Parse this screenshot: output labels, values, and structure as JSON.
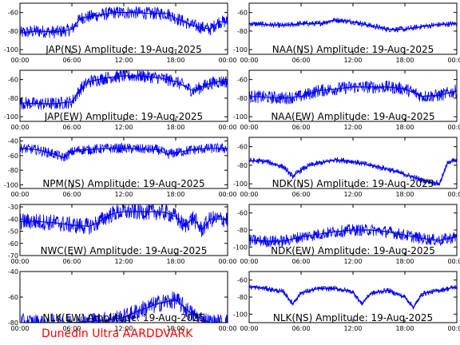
{
  "footer": "Dunedin Ultra AARDDVARK",
  "colors": {
    "trace": "#0000ff",
    "footer": "#ff0000",
    "axis": "#000000"
  },
  "chart_data": [
    {
      "type": "line",
      "title": "JAP(NS) Amplitude: 19-Aug-2025",
      "ylim": [
        -105,
        -50
      ],
      "yticks": [
        -100,
        -80,
        -60
      ],
      "xlim": [
        0,
        24
      ],
      "xticks": [
        "00:00",
        "06:00",
        "12:00",
        "18:00",
        "00:00"
      ],
      "x": [
        0,
        2,
        4,
        5,
        6,
        7,
        9,
        11,
        13,
        15,
        17,
        18,
        19,
        20,
        21,
        22,
        23,
        24
      ],
      "y": [
        -82,
        -80,
        -81,
        -80,
        -78,
        -66,
        -63,
        -60,
        -60,
        -61,
        -61,
        -66,
        -70,
        -74,
        -76,
        -78,
        -70,
        -70
      ]
    },
    {
      "type": "line",
      "title": "NAA(NS) Amplitude: 19-Aug-2025",
      "ylim": [
        -105,
        -50
      ],
      "yticks": [
        -100,
        -80,
        -60
      ],
      "xlim": [
        0,
        24
      ],
      "xticks": [
        "00:00",
        "06:00",
        "12:00",
        "18:00",
        "00:00"
      ],
      "x": [
        0,
        2,
        4,
        6,
        8,
        10,
        12,
        14,
        16,
        18,
        20,
        22,
        24
      ],
      "y": [
        -72,
        -73,
        -74,
        -72,
        -72,
        -68,
        -70,
        -74,
        -78,
        -78,
        -75,
        -73,
        -72
      ]
    },
    {
      "type": "line",
      "title": "JAP(EW) Amplitude: 19-Aug-2025",
      "ylim": [
        -105,
        -50
      ],
      "yticks": [
        -100,
        -80,
        -60
      ],
      "xlim": [
        0,
        24
      ],
      "xticks": [
        "00:00",
        "06:00",
        "12:00",
        "18:00",
        "00:00"
      ],
      "x": [
        0,
        2,
        4,
        6,
        7,
        8,
        10,
        12,
        14,
        16,
        18,
        20,
        22,
        23,
        24
      ],
      "y": [
        -85,
        -86,
        -86,
        -84,
        -70,
        -62,
        -58,
        -56,
        -56,
        -58,
        -62,
        -72,
        -64,
        -62,
        -62
      ]
    },
    {
      "type": "line",
      "title": "NAA(EW) Amplitude: 19-Aug-2025",
      "ylim": [
        -105,
        -50
      ],
      "yticks": [
        -100,
        -80,
        -60
      ],
      "xlim": [
        0,
        24
      ],
      "xticks": [
        "00:00",
        "06:00",
        "12:00",
        "18:00",
        "00:00"
      ],
      "x": [
        0,
        2,
        4,
        6,
        8,
        10,
        12,
        14,
        16,
        18,
        20,
        22,
        24
      ],
      "y": [
        -78,
        -79,
        -80,
        -78,
        -72,
        -70,
        -68,
        -68,
        -68,
        -70,
        -78,
        -77,
        -72
      ]
    },
    {
      "type": "line",
      "title": "NPM(NS) Amplitude: 19-Aug-2025",
      "ylim": [
        -105,
        -35
      ],
      "yticks": [
        -100,
        -80,
        -60,
        -40
      ],
      "xlim": [
        0,
        24
      ],
      "xticks": [
        "00:00",
        "06:00",
        "12:00",
        "18:00",
        "00:00"
      ],
      "x": [
        0,
        2,
        4,
        5,
        6,
        7,
        8,
        10,
        12,
        14,
        16,
        17,
        18,
        20,
        22,
        24
      ],
      "y": [
        -50,
        -52,
        -58,
        -63,
        -55,
        -52,
        -52,
        -50,
        -50,
        -51,
        -52,
        -58,
        -56,
        -52,
        -50,
        -50
      ]
    },
    {
      "type": "line",
      "title": "NDK(NS) Amplitude: 19-Aug-2025",
      "ylim": [
        -105,
        -50
      ],
      "yticks": [
        -100,
        -80,
        -60
      ],
      "xlim": [
        0,
        24
      ],
      "xticks": [
        "00:00",
        "06:00",
        "12:00",
        "18:00",
        "00:00"
      ],
      "x": [
        0,
        2,
        4,
        5,
        6,
        7,
        8,
        10,
        12,
        14,
        16,
        18,
        20,
        22,
        23,
        24
      ],
      "y": [
        -75,
        -76,
        -82,
        -92,
        -85,
        -80,
        -78,
        -74,
        -76,
        -80,
        -84,
        -90,
        -96,
        -100,
        -76,
        -75
      ]
    },
    {
      "type": "line",
      "title": "NWC(EW) Amplitude: 19-Aug-2025",
      "ylim": [
        -70,
        -28
      ],
      "yticks": [
        -70,
        -60,
        -50,
        -40,
        -30
      ],
      "xlim": [
        0,
        24
      ],
      "xticks": [
        "00:00",
        "06:00",
        "12:00",
        "18:00",
        "00:00"
      ],
      "x": [
        0,
        2,
        4,
        6,
        8,
        9,
        10,
        11,
        12,
        14,
        16,
        17,
        18,
        19,
        20,
        21,
        22,
        24
      ],
      "y": [
        -42,
        -42,
        -43,
        -45,
        -46,
        -43,
        -38,
        -35,
        -34,
        -34,
        -34,
        -35,
        -38,
        -46,
        -39,
        -49,
        -40,
        -40
      ]
    },
    {
      "type": "line",
      "title": "NDK(EW) Amplitude: 19-Aug-2025",
      "ylim": [
        -110,
        -50
      ],
      "yticks": [
        -100,
        -80,
        -60
      ],
      "xlim": [
        0,
        24
      ],
      "xticks": [
        "00:00",
        "06:00",
        "12:00",
        "18:00",
        "00:00"
      ],
      "x": [
        0,
        2,
        4,
        6,
        8,
        10,
        12,
        14,
        16,
        18,
        20,
        22,
        24
      ],
      "y": [
        -92,
        -93,
        -93,
        -88,
        -85,
        -82,
        -80,
        -80,
        -82,
        -86,
        -90,
        -92,
        -88
      ]
    },
    {
      "type": "line",
      "title": "NLK(EW) Amplitude: 19-Aug-2025",
      "ylim": [
        -80,
        -40
      ],
      "yticks": [
        -80,
        -60,
        -40
      ],
      "xlim": [
        0,
        24
      ],
      "xticks": [
        "00:00",
        "06:00",
        "12:00",
        "18:00",
        "00:00"
      ],
      "x": [
        0,
        2,
        4,
        6,
        8,
        10,
        12,
        14,
        16,
        18,
        20,
        22,
        24
      ],
      "y": [
        -80,
        -80,
        -80,
        -80,
        -79,
        -78,
        -76,
        -70,
        -65,
        -62,
        -74,
        -80,
        -80
      ]
    },
    {
      "type": "line",
      "title": "NLK(NS) Amplitude: 19-Aug-2025",
      "ylim": [
        -110,
        -50
      ],
      "yticks": [
        -100,
        -80,
        -60
      ],
      "xlim": [
        0,
        24
      ],
      "xticks": [
        "00:00",
        "06:00",
        "12:00",
        "18:00",
        "00:00"
      ],
      "x": [
        0,
        2,
        4,
        5,
        6,
        8,
        10,
        12,
        13,
        14,
        16,
        18,
        19,
        20,
        22,
        24
      ],
      "y": [
        -68,
        -70,
        -74,
        -88,
        -75,
        -70,
        -70,
        -74,
        -88,
        -76,
        -72,
        -80,
        -92,
        -76,
        -72,
        -68
      ]
    }
  ]
}
